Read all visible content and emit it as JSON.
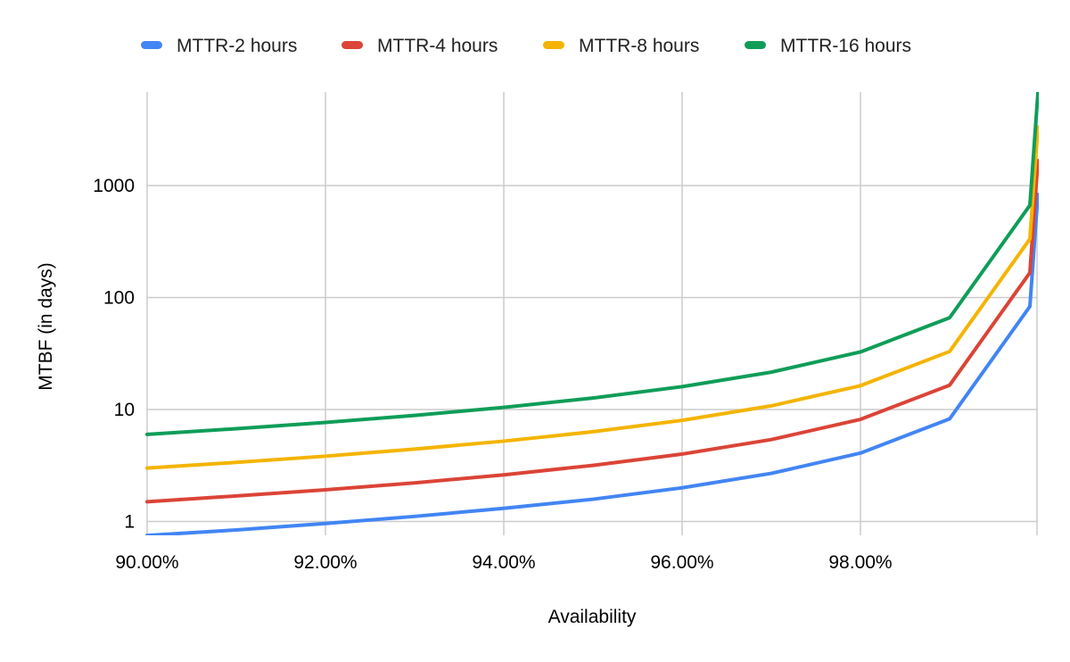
{
  "chart_data": {
    "type": "line",
    "title": "",
    "xlabel": "Availability",
    "ylabel": "MTBF (in days)",
    "x_scale": "linear",
    "y_scale": "log",
    "xlim": [
      90.0,
      99.99
    ],
    "ylim": [
      0.75,
      6700
    ],
    "x_ticks": [
      90,
      92,
      94,
      96,
      98
    ],
    "x_tick_labels": [
      "90.00%",
      "92.00%",
      "94.00%",
      "96.00%",
      "98.00%"
    ],
    "y_ticks": [
      1,
      10,
      100,
      1000
    ],
    "y_tick_labels": [
      "1",
      "10",
      "100",
      "1000"
    ],
    "grid": true,
    "legend_position": "top",
    "x": [
      90,
      91,
      92,
      93,
      94,
      95,
      96,
      97,
      98,
      99,
      99.9,
      99.99
    ],
    "series": [
      {
        "name": "MTTR-2 hours",
        "color": "#4285F4",
        "values": [
          0.75,
          0.84,
          0.96,
          1.11,
          1.31,
          1.58,
          2.0,
          2.69,
          4.08,
          8.25,
          83.25,
          833.25
        ]
      },
      {
        "name": "MTTR-4 hours",
        "color": "#DB4437",
        "values": [
          1.5,
          1.69,
          1.92,
          2.21,
          2.61,
          3.17,
          4.0,
          5.39,
          8.17,
          16.5,
          166.5,
          1666.5
        ]
      },
      {
        "name": "MTTR-8 hours",
        "color": "#F4B400",
        "values": [
          3.0,
          3.37,
          3.83,
          4.43,
          5.22,
          6.33,
          8.0,
          10.78,
          16.33,
          33.0,
          333.0,
          3333.0
        ]
      },
      {
        "name": "MTTR-16 hours",
        "color": "#0F9D58",
        "values": [
          6.0,
          6.74,
          7.67,
          8.86,
          10.44,
          12.67,
          16.0,
          21.56,
          32.67,
          66.0,
          666.0,
          6666.0
        ]
      }
    ]
  }
}
